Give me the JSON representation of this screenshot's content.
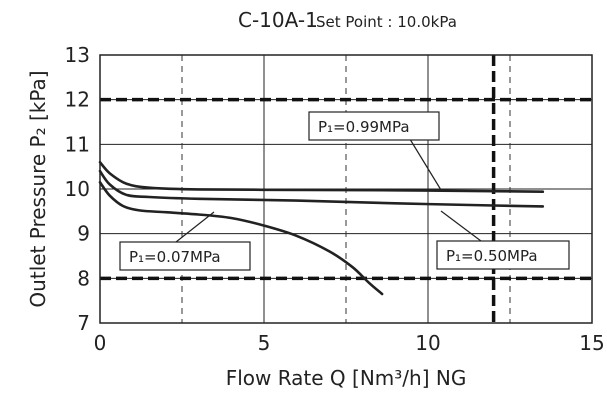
{
  "title": {
    "model": "C-10A-1",
    "set_point": "Set Point : 10.0kPa"
  },
  "axes": {
    "xlabel": "Flow Rate Q [Nm³/h] NG",
    "ylabel": "Outlet Pressure P₂ [kPa]"
  },
  "annotations": {
    "p099": "P₁=0.99MPa",
    "p050": "P₁=0.50MPa",
    "p007": "P₁=0.07MPa"
  },
  "chart_data": {
    "type": "line",
    "title": "C-10A-1  Set Point : 10.0kPa",
    "xlabel": "Flow Rate Q [Nm³/h] NG",
    "ylabel": "Outlet Pressure P₂ [kPa]",
    "xlim": [
      0,
      15
    ],
    "ylim": [
      7,
      13
    ],
    "xticks": [
      0,
      5,
      10,
      15
    ],
    "yticks": [
      7,
      8,
      9,
      10,
      11,
      12,
      13
    ],
    "grid": true,
    "reference_lines": {
      "horizontal_dashed_bold": [
        8,
        12
      ],
      "vertical_dashed_bold": [
        12
      ],
      "vertical_dashed_thin": [
        2.5,
        7.5,
        12.5
      ]
    },
    "series": [
      {
        "name": "P₁=0.99MPa",
        "x": [
          0,
          0.3,
          0.8,
          1.5,
          3,
          6,
          9,
          12,
          13.5
        ],
        "y": [
          10.6,
          10.35,
          10.12,
          10.03,
          9.99,
          9.98,
          9.97,
          9.95,
          9.94
        ]
      },
      {
        "name": "P₁=0.50MPa",
        "x": [
          0,
          0.3,
          0.8,
          1.5,
          3,
          6,
          9,
          12,
          13.5
        ],
        "y": [
          10.4,
          10.1,
          9.87,
          9.82,
          9.78,
          9.74,
          9.68,
          9.63,
          9.61
        ]
      },
      {
        "name": "P₁=0.07MPa",
        "x": [
          0,
          0.3,
          0.7,
          1.2,
          2,
          3,
          4,
          5,
          6,
          7,
          7.7,
          8.2,
          8.6
        ],
        "y": [
          10.15,
          9.85,
          9.62,
          9.52,
          9.48,
          9.43,
          9.35,
          9.18,
          8.95,
          8.6,
          8.25,
          7.9,
          7.65
        ]
      }
    ]
  }
}
